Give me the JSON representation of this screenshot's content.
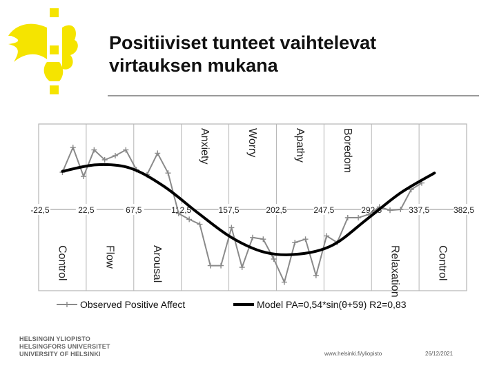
{
  "slide": {
    "title_line1": "Positiiviset tunteet vaihtelevat",
    "title_line2": "virtauksen mukana",
    "org_lines": [
      "HELSINGIN YLIOPISTO",
      "HELSINGFORS UNIVERSITET",
      "UNIVERSITY OF HELSINKI"
    ],
    "url": "www.helsinki.fi/yliopisto",
    "date": "26/12/2021",
    "colors": {
      "logo": "#f5e400",
      "model_line": "#000000",
      "observed_line": "#8a8a8a",
      "grid": "#b5b5b5"
    }
  },
  "chart_data": {
    "type": "line",
    "xlim": [
      -22.5,
      382.5
    ],
    "ylim": [
      -1.0,
      1.0
    ],
    "x_ticks": [
      "-22,5",
      "22,5",
      "67,5",
      "112,5",
      "157,5",
      "202,5",
      "247,5",
      "292,5",
      "337,5",
      "382,5"
    ],
    "x_tick_values": [
      -22.5,
      22.5,
      67.5,
      112.5,
      157.5,
      202.5,
      247.5,
      292.5,
      337.5,
      382.5
    ],
    "quadrant_labels_top": [
      {
        "text": "Anxiety",
        "x": 135
      },
      {
        "text": "Worry",
        "x": 180
      },
      {
        "text": "Apathy",
        "x": 225
      },
      {
        "text": "Boredom",
        "x": 270
      }
    ],
    "quadrant_labels_bottom": [
      {
        "text": "Control",
        "x": 0
      },
      {
        "text": "Flow",
        "x": 45
      },
      {
        "text": "Arousal",
        "x": 90
      },
      {
        "text": "Relaxation",
        "x": 315
      },
      {
        "text": "Control",
        "x": 360
      }
    ],
    "series": [
      {
        "name": "Observed Positive Affect",
        "style": "marker-line",
        "x": [
          0,
          10,
          20,
          30,
          40,
          50,
          60,
          70,
          80,
          90,
          100,
          110,
          120,
          130,
          140,
          150,
          160,
          170,
          180,
          190,
          200,
          210,
          220,
          230,
          240,
          250,
          260,
          270,
          280,
          290,
          300,
          310,
          320,
          330,
          340
        ],
        "y": [
          0.45,
          0.75,
          0.4,
          0.72,
          0.6,
          0.65,
          0.72,
          0.48,
          0.42,
          0.68,
          0.44,
          -0.05,
          -0.12,
          -0.18,
          -0.68,
          -0.68,
          -0.22,
          -0.7,
          -0.34,
          -0.36,
          -0.6,
          -0.88,
          -0.4,
          -0.36,
          -0.8,
          -0.32,
          -0.4,
          -0.1,
          -0.1,
          -0.06,
          0.03,
          -0.01,
          0.0,
          0.24,
          0.32
        ]
      },
      {
        "name": "Model PA=0,54*sin(θ+59) R2=0,83",
        "style": "thick-line",
        "amplitude": 0.54,
        "phase_deg": 59,
        "x_range": [
          0,
          352
        ],
        "y": [
          0.46,
          0.54,
          0.5,
          0.28,
          -0.04,
          -0.34,
          -0.52,
          -0.54,
          -0.43,
          -0.12,
          0.2,
          0.44
        ]
      }
    ],
    "legend": {
      "position": "bottom",
      "entries": [
        "Observed Positive Affect",
        "Model PA=0,54*sin(θ+59) R2=0,83"
      ]
    }
  }
}
